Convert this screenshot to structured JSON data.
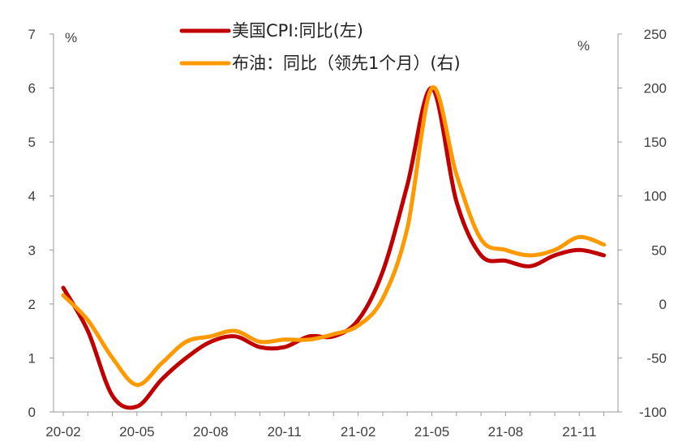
{
  "chart_data": {
    "type": "line",
    "x": [
      "20-02",
      "20-03",
      "20-04",
      "20-05",
      "20-06",
      "20-07",
      "20-08",
      "20-09",
      "20-10",
      "20-11",
      "20-12",
      "21-01",
      "21-02",
      "21-03",
      "21-04",
      "21-05",
      "21-06",
      "21-07",
      "21-08",
      "21-09",
      "21-10",
      "21-11",
      "21-12"
    ],
    "x_tick_labels": [
      "20-02",
      "20-05",
      "20-08",
      "20-11",
      "21-02",
      "21-05",
      "21-08",
      "21-11"
    ],
    "series": [
      {
        "name": "美国CPI:同比(左)",
        "axis": "left",
        "color": "#c00000",
        "values": [
          2.3,
          1.5,
          0.3,
          0.1,
          0.6,
          1.0,
          1.3,
          1.4,
          1.2,
          1.2,
          1.4,
          1.4,
          1.7,
          2.6,
          4.2,
          6.0,
          3.9,
          2.9,
          2.8,
          2.7,
          2.9,
          3.0,
          2.9
        ]
      },
      {
        "name": "布油：同比（领先1个月）(右)",
        "axis": "right",
        "color": "#ff9900",
        "values": [
          8,
          -15,
          -50,
          -75,
          -55,
          -35,
          -30,
          -25,
          -35,
          -33,
          -33,
          -28,
          -20,
          5,
          70,
          200,
          120,
          60,
          50,
          45,
          50,
          62,
          55
        ]
      }
    ],
    "y_left": {
      "min": 0,
      "max": 7,
      "ticks": [
        "0",
        "1",
        "2",
        "3",
        "4",
        "5",
        "6",
        "7"
      ],
      "unit": "%"
    },
    "y_right": {
      "min": -100,
      "max": 250,
      "ticks": [
        "-100",
        "-50",
        "0",
        "50",
        "100",
        "150",
        "200",
        "250"
      ],
      "unit": "%"
    },
    "legend_position": "top-center",
    "grid": false
  }
}
